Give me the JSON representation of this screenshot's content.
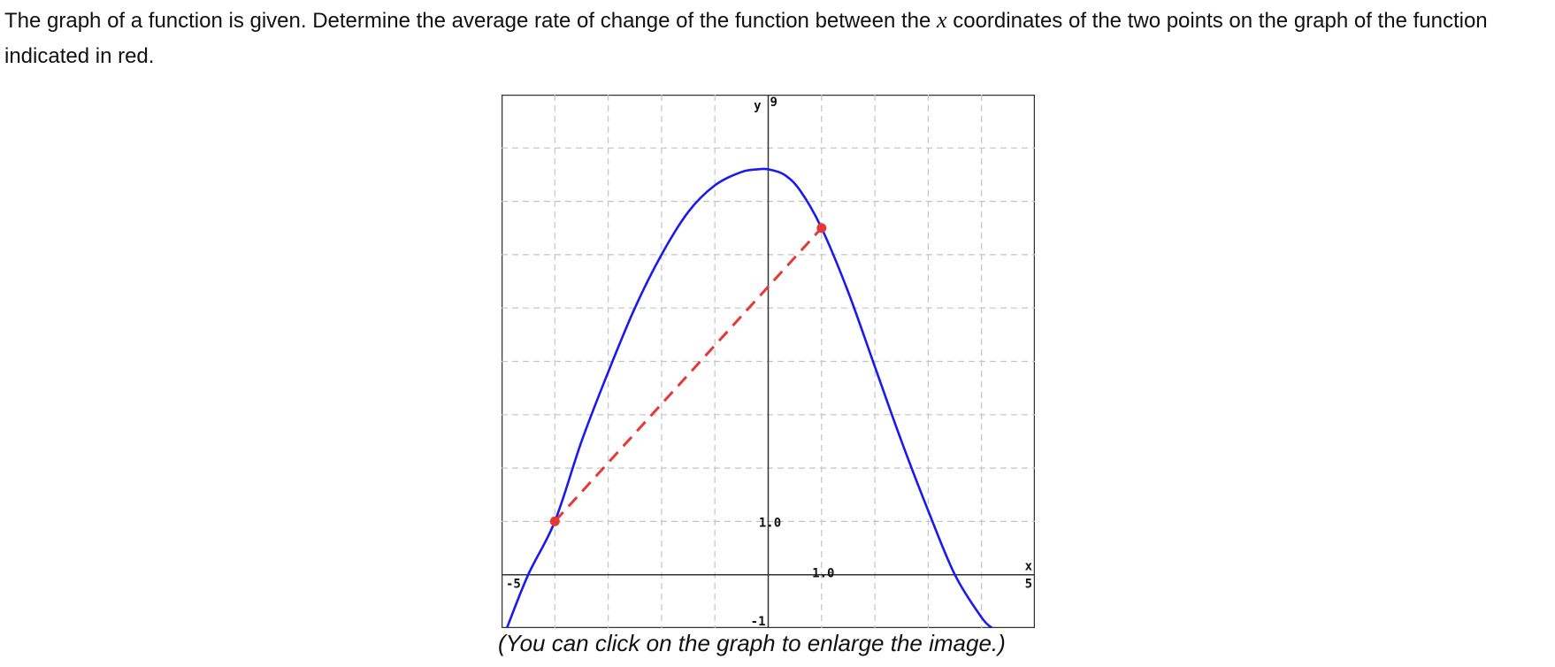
{
  "question": {
    "part1": "The graph of a function is given. Determine the average rate of change of the function between the ",
    "var": "x",
    "part2": " coordinates of the two points on the graph of the function indicated in red."
  },
  "caption": "(You can click on the graph to enlarge the image.)",
  "chart_data": {
    "type": "line",
    "xlim": [
      -5,
      5
    ],
    "ylim": [
      -1,
      9
    ],
    "grid": true,
    "axis_labels": {
      "x": "x",
      "y": "y"
    },
    "tick_labels": {
      "x_min": "-5",
      "x_max": "5",
      "x_unit": "1.0",
      "y_min": "-1",
      "y_max": "9",
      "y_unit": "1.0"
    },
    "series": [
      {
        "color": "#1a1aee",
        "x": [
          -4.9,
          -4.5,
          -4.0,
          -3.5,
          -3.0,
          -2.5,
          -2.0,
          -1.5,
          -1.0,
          -0.5,
          -0.2,
          0.0,
          0.3,
          0.6,
          1.0,
          1.5,
          2.0,
          2.5,
          3.0,
          3.5,
          4.0,
          4.2
        ],
        "y": [
          -1.0,
          0.0,
          1.0,
          2.5,
          3.8,
          5.0,
          6.0,
          6.8,
          7.3,
          7.55,
          7.6,
          7.6,
          7.5,
          7.2,
          6.5,
          5.3,
          3.9,
          2.5,
          1.2,
          0.0,
          -0.8,
          -1.0
        ]
      }
    ],
    "highlight_points": [
      {
        "x": -4,
        "y": 1,
        "color": "#e53935"
      },
      {
        "x": 1,
        "y": 6.5,
        "color": "#e53935"
      }
    ],
    "secant": {
      "from": [
        -4,
        1
      ],
      "to": [
        1,
        6.5
      ],
      "color": "#e53935",
      "style": "dashed"
    }
  }
}
